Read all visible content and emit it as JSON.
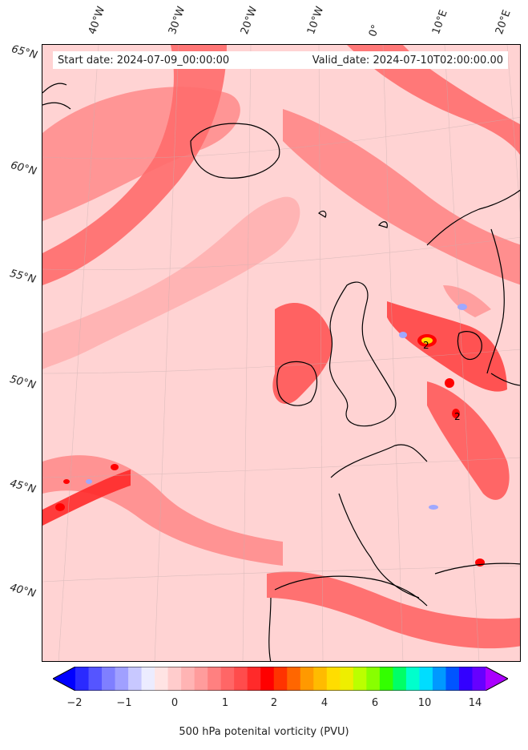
{
  "map": {
    "start_date_label": "Start date: 2024-07-09_00:00:00",
    "valid_date_label": "Valid_date: 2024-07-10T02:00:00.00",
    "longitude_labels": [
      "40°W",
      "30°W",
      "20°W",
      "10°W",
      "0°",
      "10°E",
      "20°E"
    ],
    "latitude_labels": [
      "65°N",
      "60°N",
      "55°N",
      "50°N",
      "45°N",
      "40°N"
    ],
    "contour_labels": [
      "2",
      "2"
    ],
    "field_colors": {
      "background": "#ffd3d3",
      "light": "#ffb0b0",
      "mid": "#ff7a7a",
      "strong": "#ff3a3a",
      "peak": "#ff0000",
      "negative": "#9fa8ff",
      "coastline": "#000000"
    }
  },
  "colorbar": {
    "tick_labels": [
      "−2",
      "−1",
      "0",
      "1",
      "2",
      "4",
      "6",
      "10",
      "14"
    ],
    "label": "500 hPa potenital vorticity (PVU)",
    "colors": [
      "#0000ff",
      "#2a2aff",
      "#5555ff",
      "#7f7fff",
      "#a0a0ff",
      "#c8c8ff",
      "#ececff",
      "#ffe4e4",
      "#ffcccc",
      "#ffb4b4",
      "#ff9c9c",
      "#ff8080",
      "#ff6666",
      "#ff4c4c",
      "#ff2a2a",
      "#ff0000",
      "#ff3300",
      "#ff6600",
      "#ff9900",
      "#ffbb00",
      "#ffdd00",
      "#eeee00",
      "#bbff00",
      "#88ff00",
      "#33ff00",
      "#00ff66",
      "#00ffcc",
      "#00ddff",
      "#0099ff",
      "#0055ff",
      "#3300ff",
      "#6600ff",
      "#aa00ff"
    ]
  }
}
